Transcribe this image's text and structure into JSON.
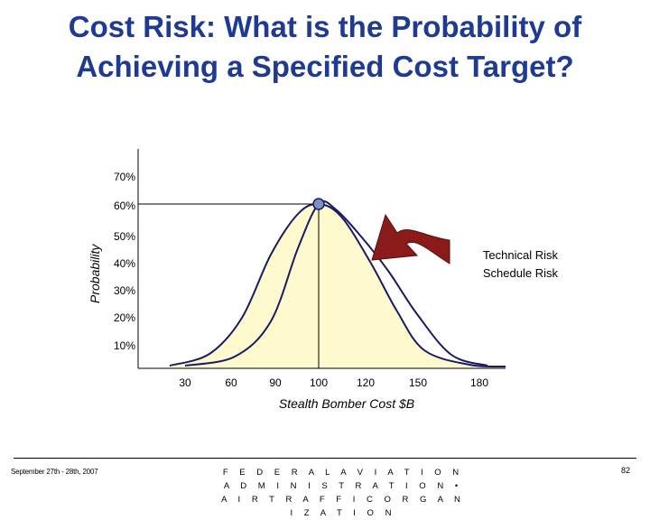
{
  "slide": {
    "title_line1": "Cost Risk: What is the Probability of",
    "title_line2": "Achieving a Specified Cost Target?"
  },
  "chart_data": {
    "type": "area",
    "ylabel": "Probability",
    "xlabel": "Stealth Bomber Cost $B",
    "y_ticks": [
      "70%",
      "60%",
      "50%",
      "40%",
      "30%",
      "20%",
      "10%"
    ],
    "x_ticks": [
      "30",
      "60",
      "90",
      "100",
      "120",
      "150",
      "180"
    ],
    "series": [
      {
        "fill": "#fffacd",
        "line": "#1a1a66",
        "points": [
          [
            30,
            10
          ],
          [
            60,
            19
          ],
          [
            90,
            50
          ],
          [
            100,
            60
          ],
          [
            120,
            39
          ],
          [
            150,
            11
          ],
          [
            180,
            10
          ]
        ]
      },
      {
        "line": "#1a1a66",
        "points": [
          [
            30,
            10
          ],
          [
            60,
            12
          ],
          [
            90,
            31
          ],
          [
            100,
            60
          ],
          [
            120,
            56
          ],
          [
            150,
            20
          ],
          [
            180,
            10
          ]
        ]
      }
    ],
    "peak": {
      "x": 100,
      "y": 60,
      "color": "#7f8fc0"
    },
    "annotation": {
      "lines": [
        "Technical Risk",
        "Schedule Risk"
      ],
      "arrow_color": "#8b1a1a"
    }
  },
  "footer": {
    "date": "September 27th - 28th, 2007",
    "org": "F E D E R A L   A V I A T I O N   A D M I N I S T R A T I O N  •  A I R   T R A F F I C   O R G A N I Z A T I O N",
    "page": "82"
  }
}
